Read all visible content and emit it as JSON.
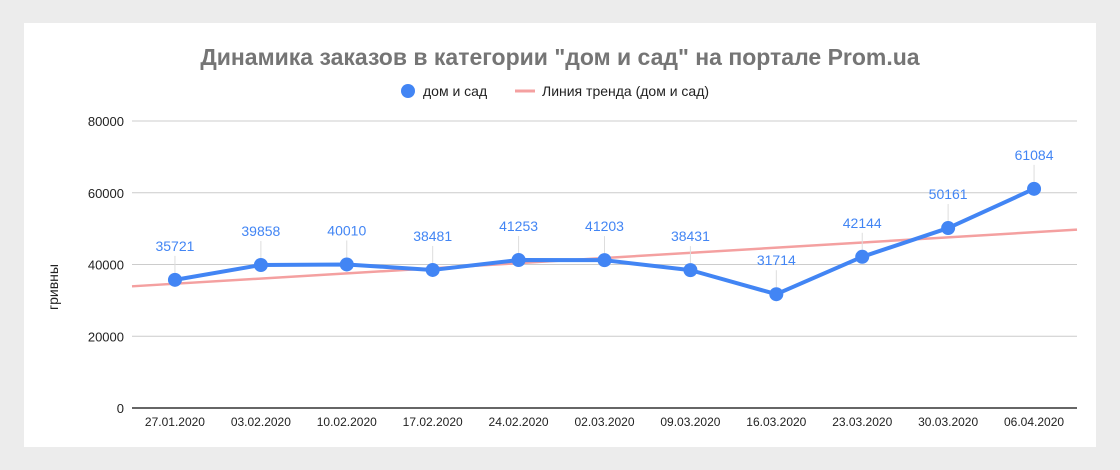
{
  "chart_data": {
    "type": "line",
    "title": "Динамика заказов в категории \"дом и сад\" на портале Prom.ua",
    "xlabel": "",
    "ylabel": "гривны",
    "ylim": [
      0,
      80000
    ],
    "yticks": [
      "0",
      "20000",
      "40000",
      "60000",
      "80000"
    ],
    "categories": [
      "27.01.2020",
      "03.02.2020",
      "10.02.2020",
      "17.02.2020",
      "24.02.2020",
      "02.03.2020",
      "09.03.2020",
      "16.03.2020",
      "23.03.2020",
      "30.03.2020",
      "06.04.2020"
    ],
    "series": [
      {
        "name": "дом и сад",
        "color": "#4285f4",
        "values": [
          35721,
          39858,
          40010,
          38481,
          41253,
          41203,
          38431,
          31714,
          42144,
          50161,
          61084
        ],
        "data_labels": [
          "35721",
          "39858",
          "40010",
          "38481",
          "41253",
          "41203",
          "38431",
          "31714",
          "42144",
          "50161",
          "61084"
        ]
      }
    ],
    "trendline": {
      "name": "Линия тренда (дом и сад)",
      "color": "#f4a0a0",
      "type": "linear"
    },
    "legend": "top",
    "grid": true
  }
}
